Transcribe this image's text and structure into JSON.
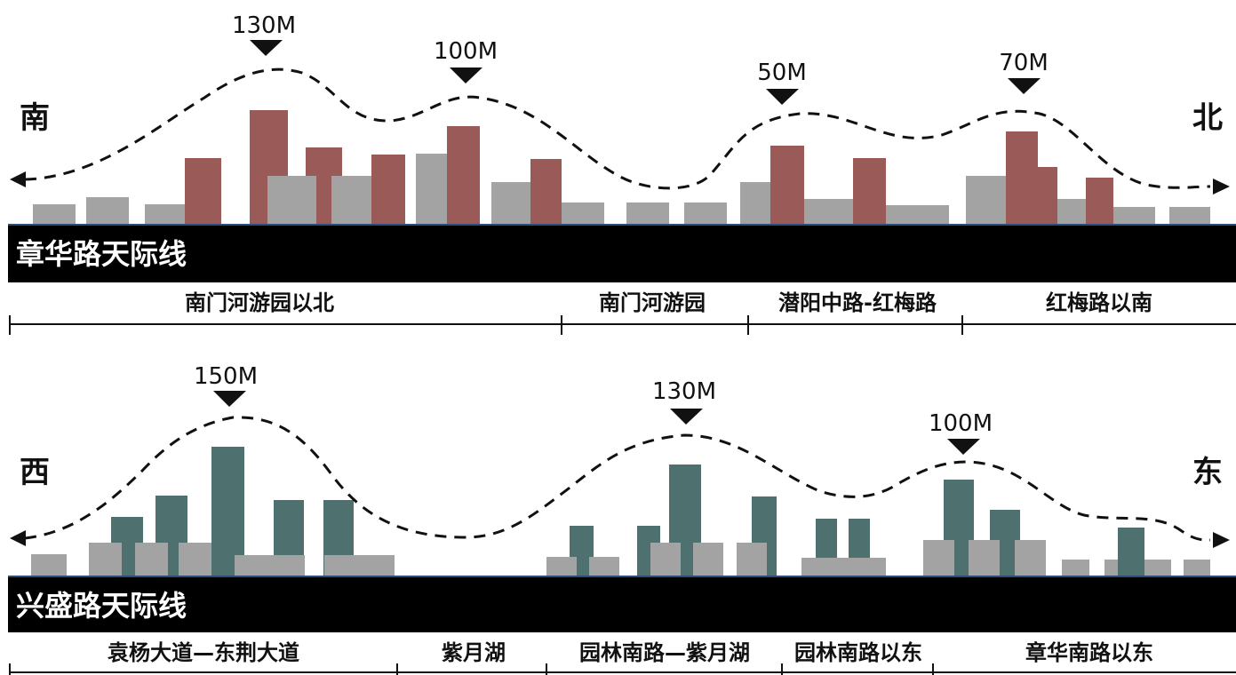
{
  "colors": {
    "grey_building": "#a3a3a3",
    "red_building": "#9a5a58",
    "teal_building": "#4e706f",
    "band": "#000000",
    "band_text": "#ffffff",
    "line": "#111111"
  },
  "skylines": [
    {
      "id": "zhanghua",
      "title": "章华路天际线",
      "dir_left": "南",
      "dir_right": "北",
      "height_markers": [
        "130M",
        "100M",
        "50M",
        "70M"
      ],
      "segments": [
        "南门河游园以北",
        "南门河游园",
        "潜阳中路-红梅路",
        "红梅路以南"
      ]
    },
    {
      "id": "xingsheng",
      "title": "兴盛路天际线",
      "dir_left": "西",
      "dir_right": "东",
      "height_markers": [
        "150M",
        "130M",
        "100M"
      ],
      "segments": [
        "袁杨大道—东荆大道",
        "紫月湖",
        "园林南路—紫月湖",
        "园林南路以东",
        "章华南路以东"
      ]
    }
  ]
}
